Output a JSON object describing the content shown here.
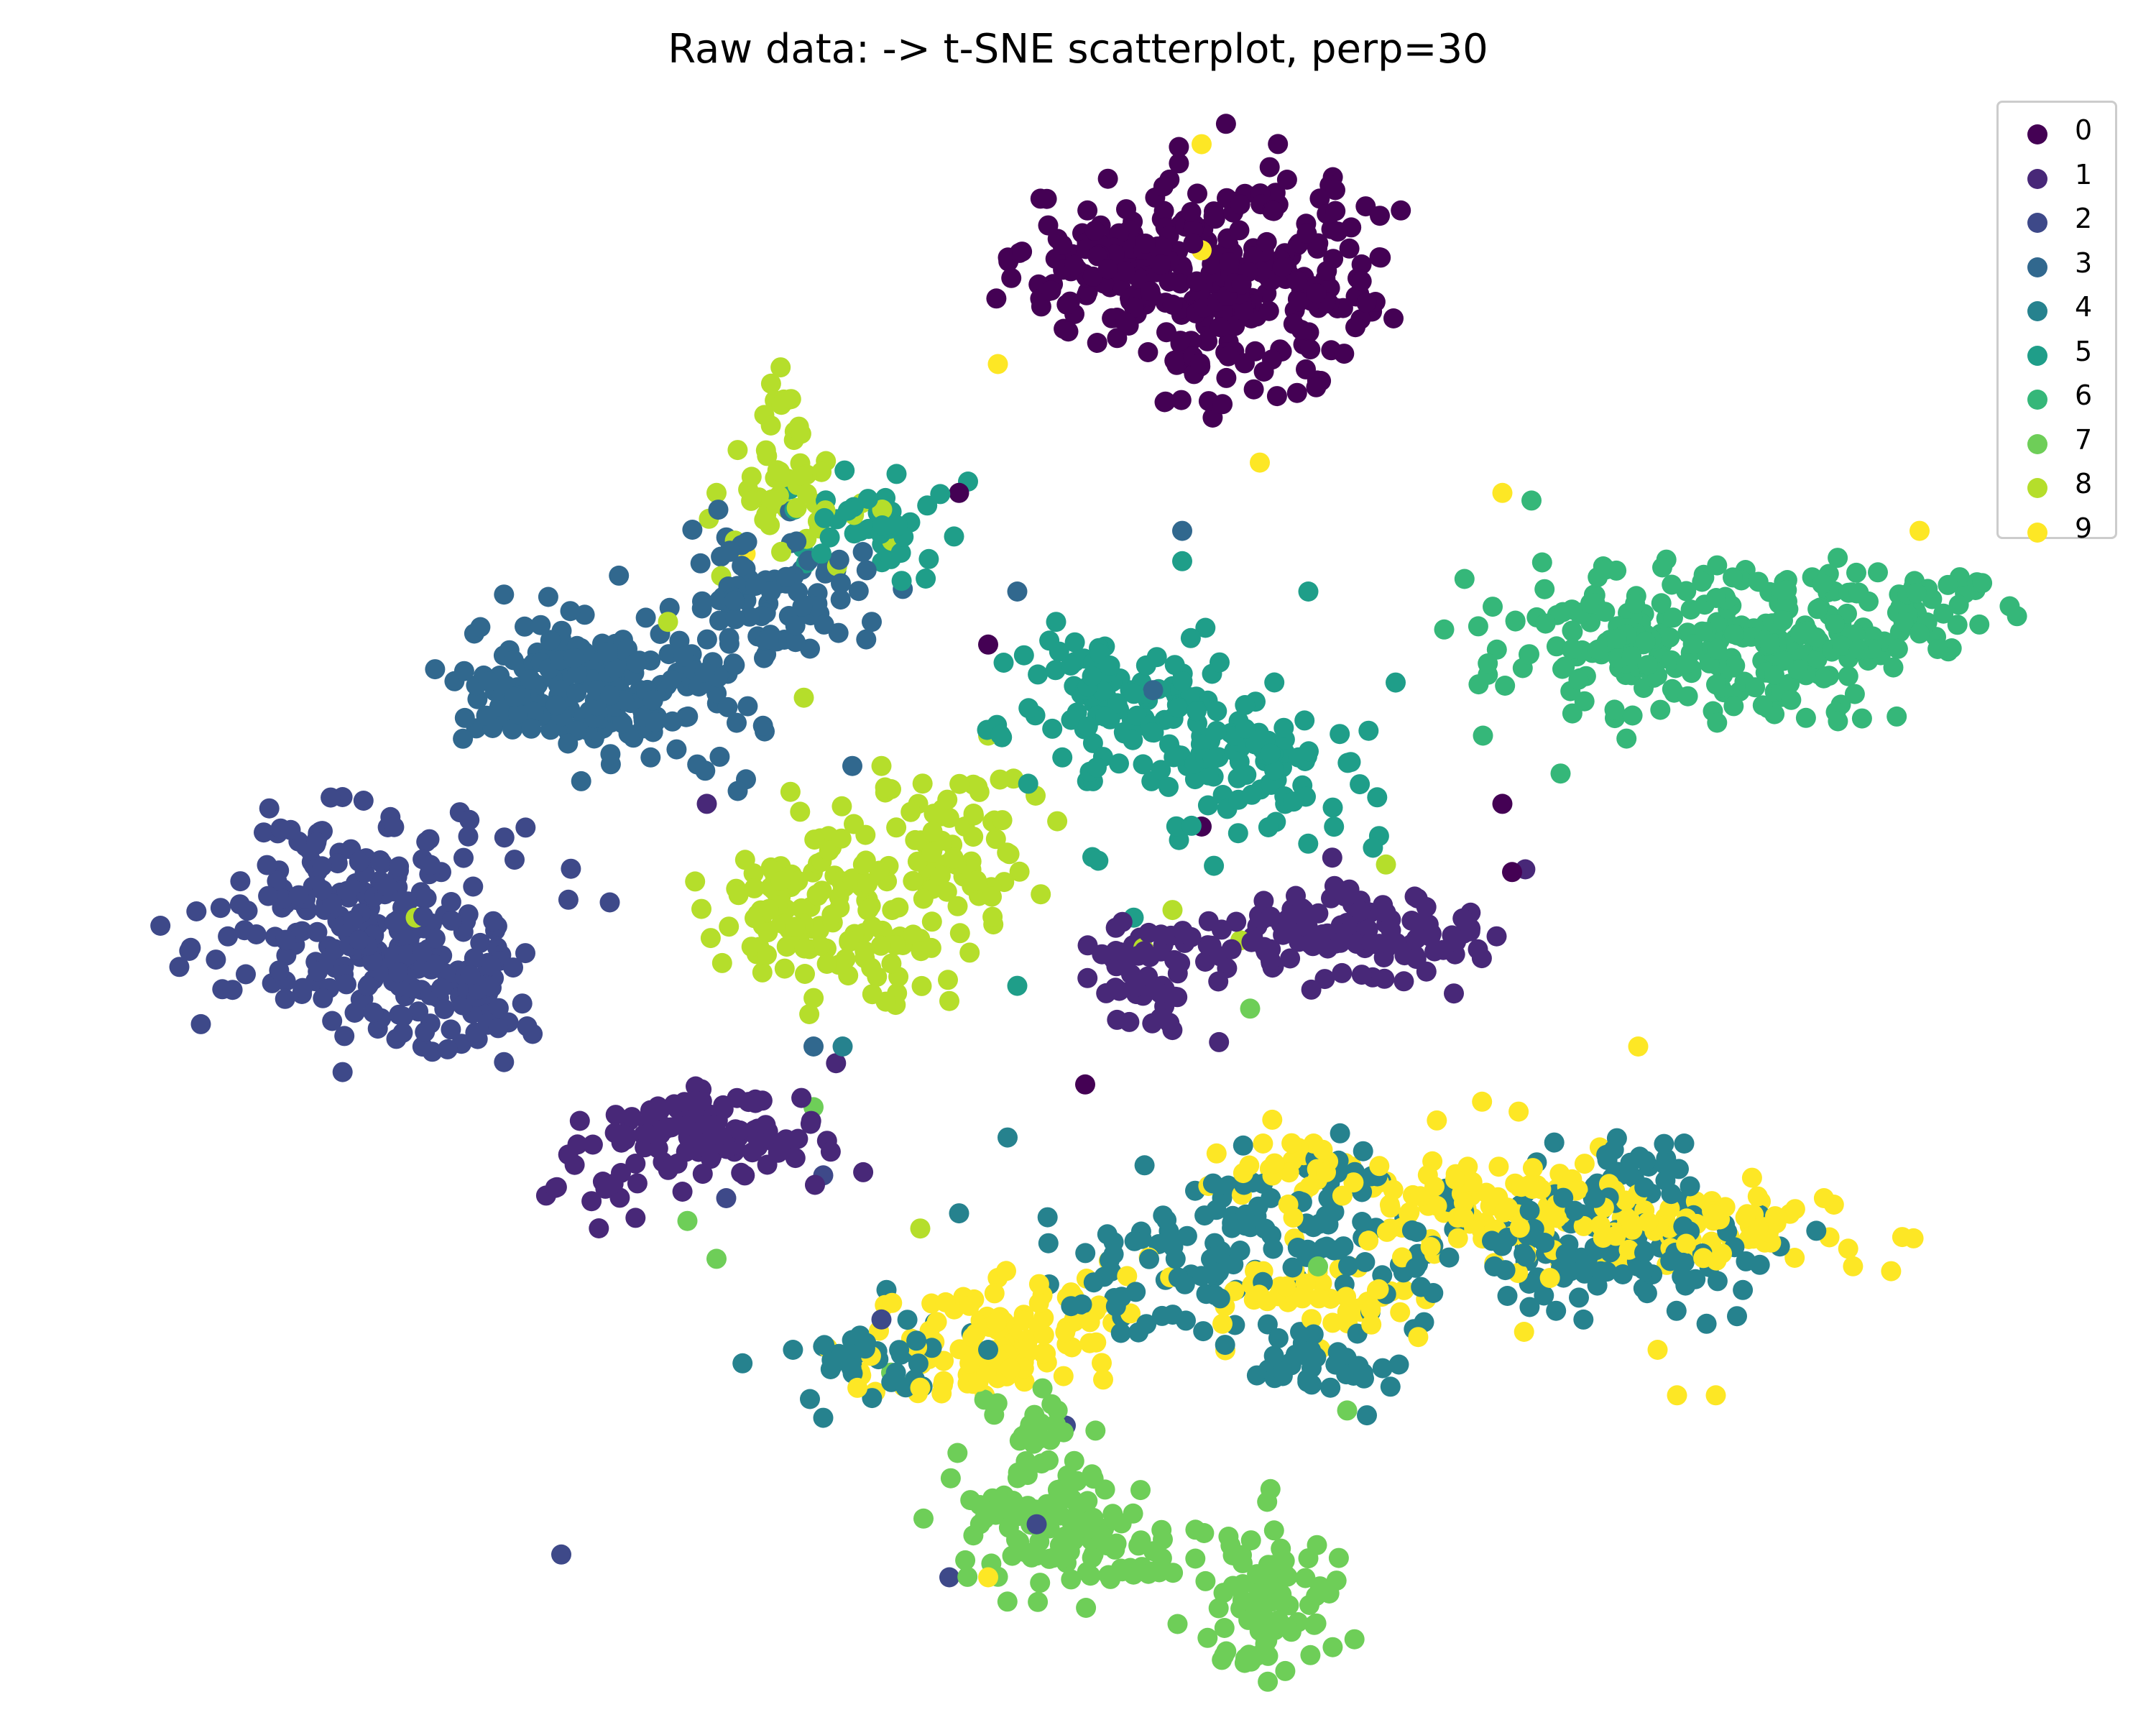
{
  "chart_data": {
    "type": "scatter",
    "title": "Raw data: -> t-SNE scatterplot, perp=30",
    "xlabel": "",
    "ylabel": "",
    "axes_visible": false,
    "grid": false,
    "xlim": [
      -100,
      100
    ],
    "ylim": [
      -100,
      100
    ],
    "legend_position": "top-right",
    "colors": [
      "#440154",
      "#482878",
      "#3e4989",
      "#31688e",
      "#26828e",
      "#1f9e89",
      "#35b779",
      "#6ece58",
      "#b5de2b",
      "#fde725"
    ],
    "series": [
      {
        "name": "0",
        "clusters": [
          {
            "center": [
              5,
              82
            ],
            "sx": 6,
            "sy": 5,
            "n": 140
          },
          {
            "center": [
              20,
              83
            ],
            "sx": 6,
            "sy": 6,
            "n": 130
          },
          {
            "center": [
              14,
              72
            ],
            "sx": 5,
            "sy": 5,
            "n": 60
          }
        ],
        "stray": [
          [
            -13,
            53
          ],
          [
            -10,
            33
          ],
          [
            43,
            12
          ],
          [
            44,
            3
          ],
          [
            0,
            -25
          ],
          [
            12,
            9
          ]
        ]
      },
      {
        "name": "1",
        "clusters": [
          {
            "center": [
              28,
              -5
            ],
            "sx": 7,
            "sy": 3,
            "n": 110
          },
          {
            "center": [
              7,
              -10
            ],
            "sx": 4,
            "sy": 4,
            "n": 60
          },
          {
            "center": [
              -39,
              -31
            ],
            "sx": 6,
            "sy": 3,
            "n": 110
          },
          {
            "center": [
              -50,
              -39
            ],
            "sx": 3,
            "sy": 2,
            "n": 20
          }
        ],
        "stray": [
          [
            -34,
            -27
          ],
          [
            38,
            -13
          ],
          [
            -39,
            12
          ]
        ]
      },
      {
        "name": "2",
        "clusters": [
          {
            "center": [
              -75,
              -3
            ],
            "sx": 7,
            "sy": 7,
            "n": 220
          },
          {
            "center": [
              -64,
              -13
            ],
            "sx": 4,
            "sy": 4,
            "n": 70
          }
        ],
        "stray": [
          [
            -27,
            -37
          ],
          [
            -37,
            -40
          ],
          [
            -54,
            -87
          ],
          [
            -71,
            -19
          ],
          [
            -49,
            -1
          ],
          [
            -14,
            -90
          ],
          [
            -2,
            -70
          ],
          [
            -5,
            -83
          ],
          [
            -21,
            -56
          ]
        ]
      },
      {
        "name": "3",
        "clusters": [
          {
            "center": [
              -50,
              28
            ],
            "sx": 7,
            "sy": 5,
            "n": 220
          },
          {
            "center": [
              -33,
              40
            ],
            "sx": 5,
            "sy": 5,
            "n": 80
          }
        ],
        "stray": [
          [
            -7,
            40
          ],
          [
            -35,
            43
          ],
          [
            -22,
            36
          ],
          [
            -28,
            -20
          ],
          [
            10,
            48
          ],
          [
            7,
            27
          ],
          [
            -24,
            17
          ]
        ]
      },
      {
        "name": "4",
        "clusters": [
          {
            "center": [
              8,
              -49
            ],
            "sx": 5,
            "sy": 4,
            "n": 60
          },
          {
            "center": [
              22,
              -42
            ],
            "sx": 7,
            "sy": 5,
            "n": 80
          },
          {
            "center": [
              53,
              -47
            ],
            "sx": 9,
            "sy": 5,
            "n": 130
          },
          {
            "center": [
              57,
              -36
            ],
            "sx": 4,
            "sy": 3,
            "n": 25
          },
          {
            "center": [
              -23,
              -61
            ],
            "sx": 4,
            "sy": 3,
            "n": 40
          },
          {
            "center": [
              24,
              -61
            ],
            "sx": 5,
            "sy": 3,
            "n": 40
          }
        ],
        "stray": [
          [
            -25,
            -20
          ],
          [
            -8,
            -32
          ],
          [
            -13,
            -42
          ],
          [
            14,
            -47
          ],
          [
            -10,
            -60
          ]
        ]
      },
      {
        "name": "5",
        "clusters": [
          {
            "center": [
              3,
              25
            ],
            "sx": 6,
            "sy": 5,
            "n": 100
          },
          {
            "center": [
              18,
              18
            ],
            "sx": 6,
            "sy": 5,
            "n": 100
          },
          {
            "center": [
              -22,
              49
            ],
            "sx": 4,
            "sy": 3,
            "n": 40
          }
        ],
        "stray": [
          [
            10,
            44
          ],
          [
            23,
            40
          ],
          [
            32,
            28
          ],
          [
            5,
            -3
          ],
          [
            -7,
            -12
          ],
          [
            -3,
            36
          ]
        ]
      },
      {
        "name": "6",
        "clusters": [
          {
            "center": [
              56,
              34
            ],
            "sx": 7,
            "sy": 5,
            "n": 130
          },
          {
            "center": [
              72,
              33
            ],
            "sx": 7,
            "sy": 5,
            "n": 130
          },
          {
            "center": [
              86,
              38
            ],
            "sx": 5,
            "sy": 3,
            "n": 40
          }
        ],
        "stray": [
          [
            46,
            52
          ],
          [
            37,
            35
          ],
          [
            41,
            21
          ],
          [
            49,
            16
          ],
          [
            42,
            38
          ]
        ]
      },
      {
        "name": "7",
        "clusters": [
          {
            "center": [
              -4,
              -83
            ],
            "sx": 5,
            "sy": 4,
            "n": 80
          },
          {
            "center": [
              3,
              -87
            ],
            "sx": 4,
            "sy": 3,
            "n": 40
          },
          {
            "center": [
              19,
              -93
            ],
            "sx": 4,
            "sy": 5,
            "n": 80
          },
          {
            "center": [
              -5,
              -70
            ],
            "sx": 3,
            "sy": 2,
            "n": 20
          }
        ],
        "stray": [
          [
            -41,
            -43
          ],
          [
            -20,
            -63
          ],
          [
            27,
            -68
          ],
          [
            24,
            -49
          ],
          [
            -38,
            -48
          ],
          [
            17,
            -15
          ],
          [
            -28,
            -28
          ],
          [
            8,
            -85
          ]
        ]
      },
      {
        "name": "8",
        "clusters": [
          {
            "center": [
              -25,
              -2
            ],
            "sx": 7,
            "sy": 6,
            "n": 150
          },
          {
            "center": [
              -14,
              7
            ],
            "sx": 5,
            "sy": 5,
            "n": 60
          },
          {
            "center": [
              -31,
              52
            ],
            "sx": 4,
            "sy": 4,
            "n": 40
          },
          {
            "center": [
              -32,
              62
            ],
            "sx": 2,
            "sy": 2,
            "n": 15
          }
        ],
        "stray": [
          [
            -29,
            26
          ],
          [
            -21,
            17
          ],
          [
            -10,
            21
          ],
          [
            -38,
            53
          ],
          [
            -43,
            36
          ],
          [
            31,
            4
          ],
          [
            -69,
            -3
          ],
          [
            -14,
            -14
          ],
          [
            6,
            -7
          ],
          [
            16,
            -6
          ],
          [
            9,
            -2
          ],
          [
            -17,
            -44
          ]
        ]
      },
      {
        "name": "9",
        "clusters": [
          {
            "center": [
              -12,
              -60
            ],
            "sx": 6,
            "sy": 4,
            "n": 70
          },
          {
            "center": [
              -3,
              -56
            ],
            "sx": 4,
            "sy": 3,
            "n": 40
          },
          {
            "center": [
              25,
              -52
            ],
            "sx": 6,
            "sy": 3,
            "n": 50
          },
          {
            "center": [
              40,
              -40
            ],
            "sx": 6,
            "sy": 4,
            "n": 80
          },
          {
            "center": [
              60,
              -44
            ],
            "sx": 9,
            "sy": 3,
            "n": 100
          },
          {
            "center": [
              22,
              -36
            ],
            "sx": 4,
            "sy": 3,
            "n": 30
          }
        ],
        "stray": [
          [
            12,
            99
          ],
          [
            -9,
            70
          ],
          [
            18,
            57
          ],
          [
            43,
            53
          ],
          [
            12,
            85
          ],
          [
            59,
            -60
          ],
          [
            -35,
            45
          ],
          [
            86,
            48
          ],
          [
            57,
            -20
          ],
          [
            -17,
            -65
          ],
          [
            61,
            -66
          ],
          [
            65,
            -66
          ],
          [
            -10,
            -90
          ]
        ]
      }
    ]
  }
}
